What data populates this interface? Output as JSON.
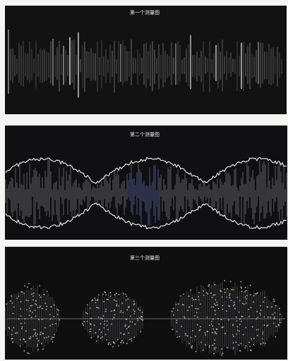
{
  "panels": [
    {
      "title": "第一个测量图"
    },
    {
      "title": "第二个测量图"
    },
    {
      "title": "第三个测量图"
    }
  ]
}
